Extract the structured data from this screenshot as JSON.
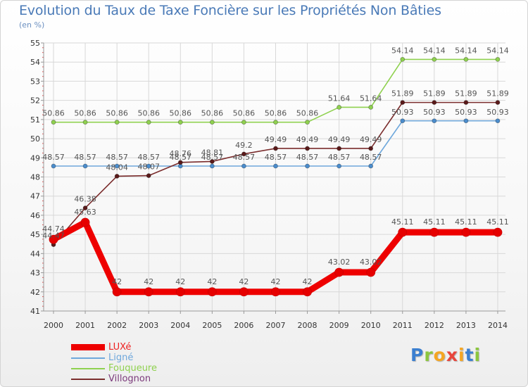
{
  "title": "Evolution du Taux de Taxe Foncière sur les Propriétés Non Bâties",
  "subtitle": "(en %)",
  "logo": {
    "letters": [
      "P",
      "r",
      "o",
      "x",
      "i",
      "t",
      "i"
    ],
    "colors": [
      "#3b7fd0",
      "#8cc63f",
      "#f5a623",
      "#e8453c",
      "#f5a623",
      "#3b7fd0",
      "#8cc63f"
    ]
  },
  "chart_data": {
    "type": "line",
    "title": "Evolution du Taux de Taxe Foncière sur les Propriétés Non Bâties",
    "ylabel": "(en %)",
    "xlabel": "",
    "ylim": [
      41,
      55
    ],
    "yticks": [
      "41",
      "42",
      "43",
      "44",
      "45",
      "46",
      "47",
      "48",
      "49",
      "50",
      "51",
      "52",
      "53",
      "54",
      "55"
    ],
    "x": [
      "2000",
      "2001",
      "2002",
      "2003",
      "2004",
      "2005",
      "2006",
      "2007",
      "2008",
      "2009",
      "2010",
      "2011",
      "2012",
      "2013",
      "2014"
    ],
    "series": [
      {
        "name": "LUXé",
        "color": "#ee0000",
        "values": [
          44.74,
          45.63,
          42,
          42,
          42,
          42,
          42,
          42,
          42,
          43.02,
          43.02,
          45.11,
          45.11,
          45.11,
          45.11
        ],
        "labels": [
          "44.74",
          "45.63",
          "42",
          "42",
          "42",
          "42",
          "42",
          "42",
          "42",
          "43.02",
          "43.02",
          "45.11",
          "45.11",
          "45.11",
          "45.11"
        ]
      },
      {
        "name": "Ligné",
        "color": "#6fa8dc",
        "values": [
          48.57,
          48.57,
          48.57,
          48.57,
          48.57,
          48.57,
          48.57,
          48.57,
          48.57,
          48.57,
          48.57,
          50.93,
          50.93,
          50.93,
          50.93
        ],
        "labels": [
          "48.57",
          "48.57",
          "48.57",
          "48.57",
          "48.57",
          "48.57",
          "48.57",
          "48.57",
          "48.57",
          "48.57",
          "48.57",
          "50.93",
          "50.93",
          "50.93",
          "50.93"
        ]
      },
      {
        "name": "Fouqueure",
        "color": "#8fd14f",
        "values": [
          50.86,
          50.86,
          50.86,
          50.86,
          50.86,
          50.86,
          50.86,
          50.86,
          50.86,
          51.64,
          51.64,
          54.14,
          54.14,
          54.14,
          54.14
        ],
        "labels": [
          "50.86",
          "50.86",
          "50.86",
          "50.86",
          "50.86",
          "50.86",
          "50.86",
          "50.86",
          "50.86",
          "51.64",
          "51.64",
          "54.14",
          "54.14",
          "54.14",
          "54.14"
        ]
      },
      {
        "name": "Villognon",
        "color": "#7b2d2d",
        "values": [
          44.47,
          46.38,
          48.04,
          48.07,
          48.76,
          48.81,
          49.2,
          49.49,
          49.49,
          49.49,
          49.49,
          51.89,
          51.89,
          51.89,
          51.89
        ],
        "labels": [
          "44.47",
          "46.38",
          "48.04",
          "48.07",
          "48.76",
          "48.81",
          "49.2",
          "49.49",
          "49.49",
          "49.49",
          "49.49",
          "51.89",
          "51.89",
          "51.89",
          "51.89"
        ]
      }
    ],
    "legend": "bottom-left"
  }
}
